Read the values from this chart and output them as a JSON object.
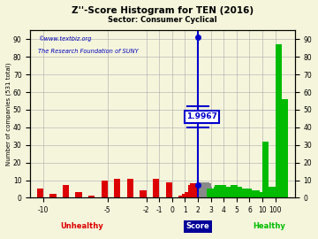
{
  "title": "Z''-Score Histogram for TEN (2016)",
  "subtitle": "Sector: Consumer Cyclical",
  "watermark1": "©www.textbiz.org",
  "watermark2": "The Research Foundation of SUNY",
  "score_label": "Score",
  "ylabel": "Number of companies (531 total)",
  "xlabel_unhealthy": "Unhealthy",
  "xlabel_healthy": "Healthy",
  "marker_value": 1.9967,
  "marker_label": "1.9967",
  "ylim": [
    0,
    95
  ],
  "yticks": [
    0,
    10,
    20,
    30,
    40,
    50,
    60,
    70,
    80,
    90
  ],
  "bg_color": "#f5f5dc",
  "grid_color": "#aaaaaa",
  "title_color": "#000000",
  "marker_color": "#0000cc",
  "unhealthy_color": "#dd0000",
  "healthy_color": "#00bb00",
  "red_color": "#dd0000",
  "gray_color": "#898989",
  "green_color": "#00bb00",
  "tick_map": {
    "-10": 0,
    "-5": 5,
    "-2": 8,
    "-1": 9,
    "0": 10,
    "1": 11,
    "2": 12,
    "3": 13,
    "4": 14,
    "5": 15,
    "6": 16,
    "10": 17,
    "100": 18
  },
  "xlim_disp": [
    -1,
    19.5
  ],
  "score_bins": [
    {
      "score": -10.5,
      "disp": -0.5,
      "height": 5,
      "color": "#dd0000"
    },
    {
      "score": -9.5,
      "disp": 0.5,
      "height": 2,
      "color": "#dd0000"
    },
    {
      "score": -8.5,
      "disp": 1.5,
      "height": 7,
      "color": "#dd0000"
    },
    {
      "score": -7.5,
      "disp": 2.5,
      "height": 3,
      "color": "#dd0000"
    },
    {
      "score": -6.5,
      "disp": 3.5,
      "height": 1,
      "color": "#dd0000"
    },
    {
      "score": -5.5,
      "disp": 4.5,
      "height": 10,
      "color": "#dd0000"
    },
    {
      "score": -4.5,
      "disp": 5.5,
      "height": 11,
      "color": "#dd0000"
    },
    {
      "score": -3.5,
      "disp": 6.5,
      "height": 11,
      "color": "#dd0000"
    },
    {
      "score": -2.5,
      "disp": 7.5,
      "height": 4,
      "color": "#dd0000"
    },
    {
      "score": -1.5,
      "disp": 8.5,
      "height": 11,
      "color": "#dd0000"
    },
    {
      "score": -0.5,
      "disp": 9.5,
      "height": 9,
      "color": "#dd0000"
    },
    {
      "score": 0.5,
      "disp": 10.5,
      "height": 1,
      "color": "#dd0000"
    },
    {
      "score": 1.0,
      "disp": 10.75,
      "height": 2,
      "color": "#dd0000"
    },
    {
      "score": 1.25,
      "disp": 11.0,
      "height": 3,
      "color": "#dd0000"
    },
    {
      "score": 1.5,
      "disp": 11.25,
      "height": 7,
      "color": "#dd0000"
    },
    {
      "score": 1.6,
      "disp": 11.4,
      "height": 8,
      "color": "#dd0000"
    },
    {
      "score": 1.7,
      "disp": 11.55,
      "height": 7,
      "color": "#dd0000"
    },
    {
      "score": 1.75,
      "disp": 11.65,
      "height": 8,
      "color": "#dd0000"
    },
    {
      "score": 1.8,
      "disp": 11.75,
      "height": 6,
      "color": "#dd0000"
    },
    {
      "score": 1.85,
      "disp": 11.85,
      "height": 5,
      "color": "#dd0000"
    },
    {
      "score": 1.9,
      "disp": 11.92,
      "height": 7,
      "color": "#dd0000"
    },
    {
      "score": 1.95,
      "disp": 11.96,
      "height": 7,
      "color": "#dd0000"
    },
    {
      "score": 2.0,
      "disp": 12.0,
      "height": 9,
      "color": "#898989"
    },
    {
      "score": 2.1,
      "disp": 12.1,
      "height": 7,
      "color": "#898989"
    },
    {
      "score": 2.2,
      "disp": 12.2,
      "height": 9,
      "color": "#898989"
    },
    {
      "score": 2.3,
      "disp": 12.3,
      "height": 9,
      "color": "#898989"
    },
    {
      "score": 2.4,
      "disp": 12.4,
      "height": 9,
      "color": "#898989"
    },
    {
      "score": 2.5,
      "disp": 12.5,
      "height": 8,
      "color": "#898989"
    },
    {
      "score": 2.6,
      "disp": 12.6,
      "height": 6,
      "color": "#898989"
    },
    {
      "score": 2.7,
      "disp": 12.7,
      "height": 5,
      "color": "#00bb00"
    },
    {
      "score": 2.8,
      "disp": 12.8,
      "height": 5,
      "color": "#00bb00"
    },
    {
      "score": 2.9,
      "disp": 12.9,
      "height": 5,
      "color": "#00bb00"
    },
    {
      "score": 3.0,
      "disp": 13.0,
      "height": 5,
      "color": "#00bb00"
    },
    {
      "score": 3.1,
      "disp": 13.1,
      "height": 4,
      "color": "#00bb00"
    },
    {
      "score": 3.2,
      "disp": 13.2,
      "height": 6,
      "color": "#00bb00"
    },
    {
      "score": 3.3,
      "disp": 13.3,
      "height": 7,
      "color": "#00bb00"
    },
    {
      "score": 3.4,
      "disp": 13.4,
      "height": 7,
      "color": "#00bb00"
    },
    {
      "score": 3.5,
      "disp": 13.5,
      "height": 5,
      "color": "#00bb00"
    },
    {
      "score": 3.6,
      "disp": 13.6,
      "height": 7,
      "color": "#00bb00"
    },
    {
      "score": 3.7,
      "disp": 13.7,
      "height": 7,
      "color": "#00bb00"
    },
    {
      "score": 3.8,
      "disp": 13.8,
      "height": 6,
      "color": "#00bb00"
    },
    {
      "score": 3.9,
      "disp": 13.9,
      "height": 6,
      "color": "#00bb00"
    },
    {
      "score": 4.0,
      "disp": 14.0,
      "height": 6,
      "color": "#00bb00"
    },
    {
      "score": 4.1,
      "disp": 14.1,
      "height": 6,
      "color": "#00bb00"
    },
    {
      "score": 4.2,
      "disp": 14.2,
      "height": 6,
      "color": "#00bb00"
    },
    {
      "score": 4.3,
      "disp": 14.3,
      "height": 5,
      "color": "#00bb00"
    },
    {
      "score": 4.4,
      "disp": 14.4,
      "height": 5,
      "color": "#00bb00"
    },
    {
      "score": 4.5,
      "disp": 14.5,
      "height": 7,
      "color": "#00bb00"
    },
    {
      "score": 4.6,
      "disp": 14.6,
      "height": 7,
      "color": "#00bb00"
    },
    {
      "score": 4.7,
      "disp": 14.7,
      "height": 6,
      "color": "#00bb00"
    },
    {
      "score": 4.8,
      "disp": 14.8,
      "height": 5,
      "color": "#00bb00"
    },
    {
      "score": 4.9,
      "disp": 14.9,
      "height": 6,
      "color": "#00bb00"
    },
    {
      "score": 5.0,
      "disp": 15.0,
      "height": 5,
      "color": "#00bb00"
    },
    {
      "score": 5.1,
      "disp": 15.1,
      "height": 3,
      "color": "#00bb00"
    },
    {
      "score": 5.2,
      "disp": 15.2,
      "height": 5,
      "color": "#00bb00"
    },
    {
      "score": 5.3,
      "disp": 15.3,
      "height": 5,
      "color": "#00bb00"
    },
    {
      "score": 5.4,
      "disp": 15.4,
      "height": 4,
      "color": "#00bb00"
    },
    {
      "score": 5.5,
      "disp": 15.5,
      "height": 3,
      "color": "#00bb00"
    },
    {
      "score": 5.6,
      "disp": 15.6,
      "height": 4,
      "color": "#00bb00"
    },
    {
      "score": 5.7,
      "disp": 15.7,
      "height": 5,
      "color": "#00bb00"
    },
    {
      "score": 5.8,
      "disp": 15.8,
      "height": 4,
      "color": "#00bb00"
    },
    {
      "score": 5.9,
      "disp": 15.9,
      "height": 3,
      "color": "#00bb00"
    },
    {
      "score": 6.0,
      "disp": 16.0,
      "height": 4,
      "color": "#00bb00"
    },
    {
      "score": 6.1,
      "disp": 16.1,
      "height": 3,
      "color": "#00bb00"
    },
    {
      "score": 6.2,
      "disp": 16.2,
      "height": 2,
      "color": "#00bb00"
    },
    {
      "score": 6.3,
      "disp": 16.3,
      "height": 4,
      "color": "#00bb00"
    },
    {
      "score": 6.4,
      "disp": 16.4,
      "height": 3,
      "color": "#00bb00"
    },
    {
      "score": 6.5,
      "disp": 16.5,
      "height": 3,
      "color": "#00bb00"
    },
    {
      "score": 6.6,
      "disp": 16.6,
      "height": 3,
      "color": "#00bb00"
    },
    {
      "score": 10.0,
      "disp": 17.0,
      "height": 32,
      "color": "#00bb00"
    },
    {
      "score": 11.0,
      "disp": 17.5,
      "height": 6,
      "color": "#00bb00"
    },
    {
      "score": 100.0,
      "disp": 18.0,
      "height": 87,
      "color": "#00bb00"
    },
    {
      "score": 101.0,
      "disp": 18.5,
      "height": 56,
      "color": "#00bb00"
    }
  ],
  "xtick_disp": [
    0,
    5,
    8,
    9,
    10,
    11,
    12,
    13,
    14,
    15,
    16,
    17,
    18
  ],
  "xtick_labels": [
    "-10",
    "-5",
    "-2",
    "-1",
    "0",
    "1",
    "2",
    "3",
    "4",
    "5",
    "6",
    "10",
    "100"
  ]
}
